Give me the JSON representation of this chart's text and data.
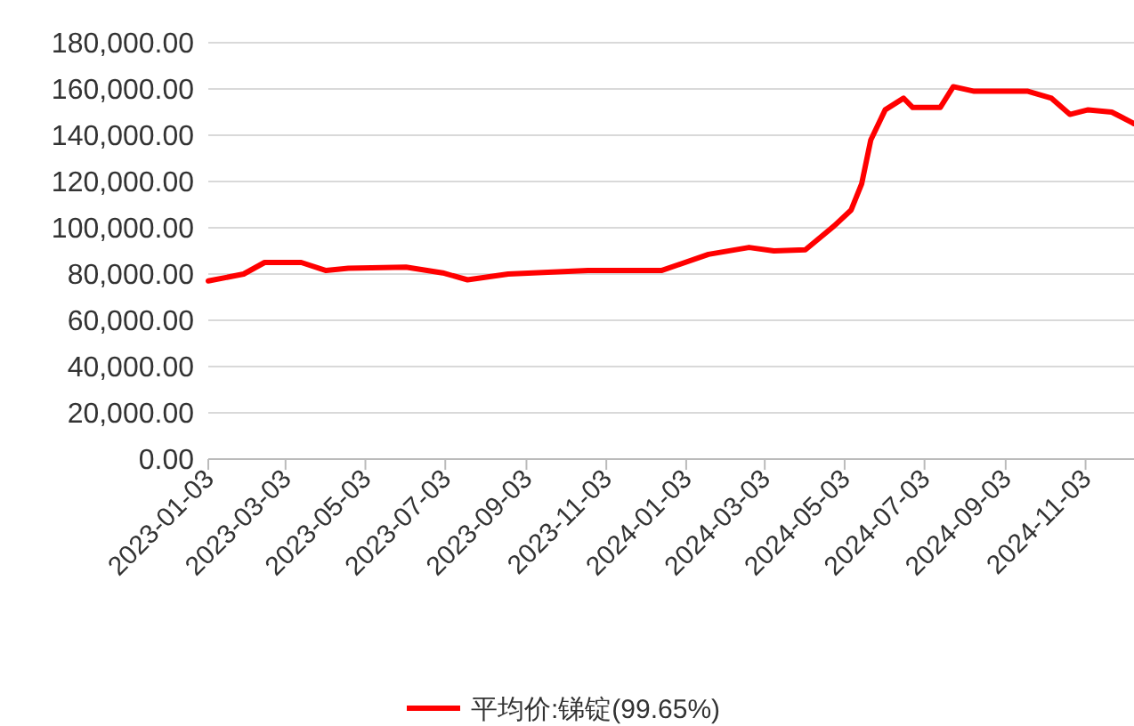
{
  "chart_data": {
    "type": "line",
    "x": [
      "2023-01-03",
      "2023-01-30",
      "2023-02-15",
      "2023-03-15",
      "2023-04-03",
      "2023-04-20",
      "2023-06-03",
      "2023-07-01",
      "2023-07-20",
      "2023-08-20",
      "2023-10-20",
      "2023-12-15",
      "2024-01-20",
      "2024-02-20",
      "2024-03-10",
      "2024-04-03",
      "2024-04-25",
      "2024-05-08",
      "2024-05-16",
      "2024-05-23",
      "2024-06-03",
      "2024-06-17",
      "2024-06-24",
      "2024-07-15",
      "2024-07-25",
      "2024-08-10",
      "2024-09-20",
      "2024-10-08",
      "2024-10-22",
      "2024-11-05",
      "2024-11-23",
      "2024-11-30",
      "2024-12-10"
    ],
    "series": [
      {
        "name": "平均价:锑锭(99.65%)",
        "color": "#ff0000",
        "values": [
          77000,
          80000,
          85000,
          85000,
          81500,
          82500,
          83000,
          80500,
          77500,
          80000,
          81500,
          81500,
          88500,
          91500,
          90000,
          90500,
          100800,
          107700,
          119000,
          138000,
          151000,
          156000,
          152000,
          152000,
          161000,
          159000,
          159000,
          156000,
          149000,
          151000,
          150000,
          148000,
          145000
        ]
      }
    ],
    "xlim": [
      "2023-01-03",
      "2024-12-10"
    ],
    "xticks": [
      {
        "value": "2023-01-03",
        "label": "2023-01-03"
      },
      {
        "value": "2023-03-03",
        "label": "2023-03-03"
      },
      {
        "value": "2023-05-03",
        "label": "2023-05-03"
      },
      {
        "value": "2023-07-03",
        "label": "2023-07-03"
      },
      {
        "value": "2023-09-03",
        "label": "2023-09-03"
      },
      {
        "value": "2023-11-03",
        "label": "2023-11-03"
      },
      {
        "value": "2024-01-03",
        "label": "2024-01-03"
      },
      {
        "value": "2024-03-03",
        "label": "2024-03-03"
      },
      {
        "value": "2024-05-03",
        "label": "2024-05-03"
      },
      {
        "value": "2024-07-03",
        "label": "2024-07-03"
      },
      {
        "value": "2024-09-03",
        "label": "2024-09-03"
      },
      {
        "value": "2024-11-03",
        "label": "2024-11-03"
      }
    ],
    "ylim": [
      0,
      180000
    ],
    "yticks": [
      {
        "value": 0,
        "label": "0.00"
      },
      {
        "value": 20000,
        "label": "20,000.00"
      },
      {
        "value": 40000,
        "label": "40,000.00"
      },
      {
        "value": 60000,
        "label": "60,000.00"
      },
      {
        "value": 80000,
        "label": "80,000.00"
      },
      {
        "value": 100000,
        "label": "100,000.00"
      },
      {
        "value": 120000,
        "label": "120,000.00"
      },
      {
        "value": 140000,
        "label": "140,000.00"
      },
      {
        "value": 160000,
        "label": "160,000.00"
      },
      {
        "value": 180000,
        "label": "180,000.00"
      }
    ],
    "grid": "y",
    "legend": "bottom",
    "marker": "none",
    "line_style": "solid"
  }
}
